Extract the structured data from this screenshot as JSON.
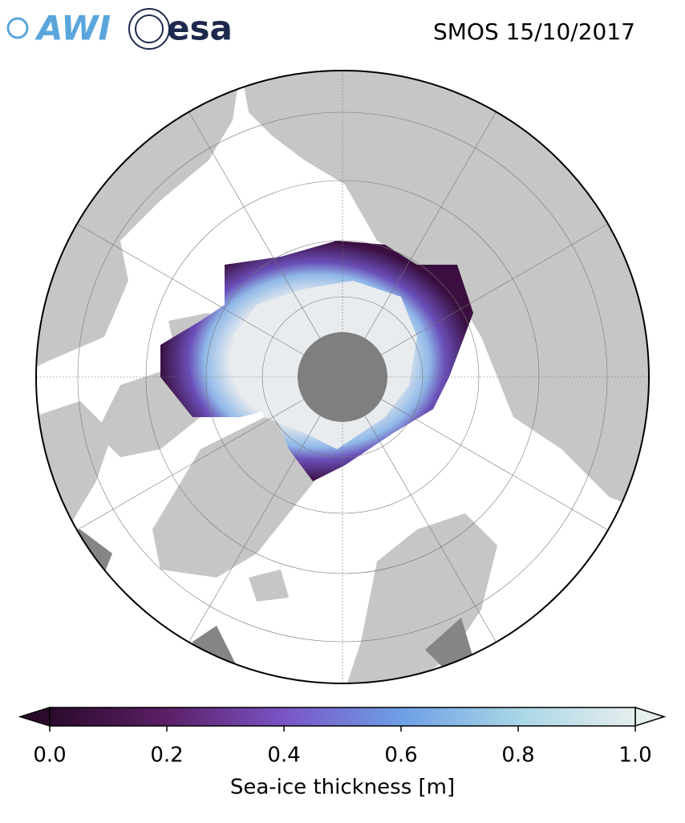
{
  "header": {
    "logo_awi": "AWI",
    "logo_esa": "esa",
    "title": "SMOS 15/10/2017"
  },
  "colorbar": {
    "label": "Sea-ice thickness [m]",
    "lim": [
      0,
      1
    ],
    "ticks": [
      {
        "value": 0,
        "label": "0.0"
      },
      0.2,
      0.4,
      0.6,
      0.8,
      {
        "value": 1,
        "label": "1.0"
      }
    ],
    "colors": [
      "#2b0a2c",
      "#5b1f66",
      "#7a54c6",
      "#6d9fe6",
      "#a8d6e6",
      "#e6eeee"
    ],
    "extend": "both"
  }
}
